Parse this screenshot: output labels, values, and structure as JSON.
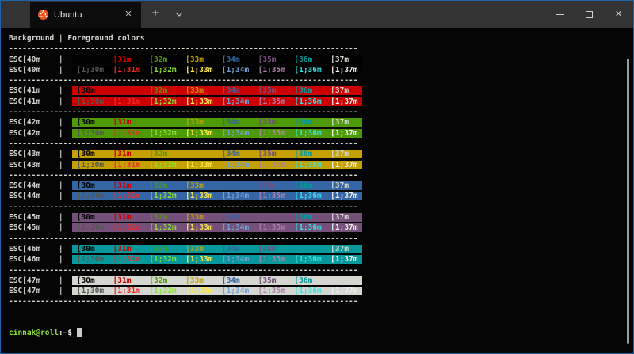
{
  "window": {
    "border_color": "#1C64A8",
    "titlebar": {
      "bar_bg": "#333333",
      "tab": {
        "label": "Ubuntu",
        "icon": "ubuntu-logo",
        "close_glyph": "✕",
        "tab_bg": "#0C0C0C",
        "tab_fg": "#ECECEC"
      },
      "new_tab_glyph": "+",
      "dropdown_icon": "chevron-down-icon",
      "controls": {
        "minimize": "minimize-icon",
        "maximize": "maximize-icon",
        "close_glyph": "✕"
      }
    }
  },
  "terminal": {
    "bg": "#050505",
    "default_fg": "#D5D5CF",
    "header": "Background | Foreground colors",
    "separator": {
      "char": "-",
      "count": 77
    },
    "pipe": "|",
    "blocks": [
      {
        "esc_label": "ESC[40m",
        "bg": "#000000"
      },
      {
        "esc_label": "ESC[41m",
        "bg": "#CC0000"
      },
      {
        "esc_label": "ESC[42m",
        "bg": "#4E9A06"
      },
      {
        "esc_label": "ESC[43m",
        "bg": "#C4A000"
      },
      {
        "esc_label": "ESC[44m",
        "bg": "#3465A4"
      },
      {
        "esc_label": "ESC[45m",
        "bg": "#75507B"
      },
      {
        "esc_label": "ESC[46m",
        "bg": "#06989A"
      },
      {
        "esc_label": "ESC[47m",
        "bg": "#D3D7CF"
      }
    ],
    "fg_normal": [
      {
        "label": "[30m",
        "color": "#000000"
      },
      {
        "label": "[31m",
        "color": "#CC0000"
      },
      {
        "label": "[32m",
        "color": "#4E9A06"
      },
      {
        "label": "[33m",
        "color": "#C4A000"
      },
      {
        "label": "[34m",
        "color": "#3465A4"
      },
      {
        "label": "[35m",
        "color": "#75507B"
      },
      {
        "label": "[36m",
        "color": "#06989A"
      },
      {
        "label": "[37m",
        "color": "#D3D7CF"
      }
    ],
    "fg_bright": [
      {
        "label": "[1;30m",
        "color": "#555753"
      },
      {
        "label": "[1;31m",
        "color": "#EF2929"
      },
      {
        "label": "[1;32m",
        "color": "#8AE234"
      },
      {
        "label": "[1;33m",
        "color": "#FCE94F"
      },
      {
        "label": "[1;34m",
        "color": "#729FCF"
      },
      {
        "label": "[1;35m",
        "color": "#AD7FA8"
      },
      {
        "label": "[1;36m",
        "color": "#34E2E2"
      },
      {
        "label": "[1;37m",
        "color": "#EEEEEC"
      }
    ],
    "prompt": {
      "user_host": "cinnak@roll",
      "colon": ":",
      "path": "~",
      "dollar": "$",
      "colors": {
        "user_host": "#8AE234",
        "path": "#729FCF",
        "rest": "#EEEEEC",
        "cursor": "#CCCCCC"
      }
    },
    "scrollbar_color": "#9A9A9A"
  }
}
